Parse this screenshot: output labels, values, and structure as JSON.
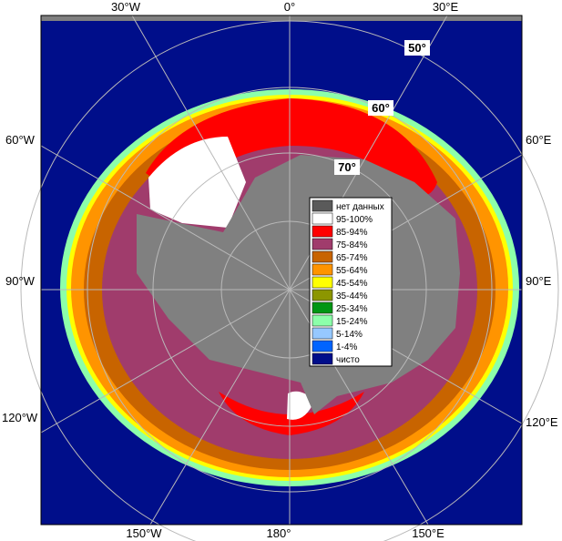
{
  "map": {
    "lon_labels": {
      "top_w30": "30°W",
      "top_0": "0°",
      "top_e30": "30°E",
      "left_60w": "60°W",
      "right_60e": "60°E",
      "left_90w": "90°W",
      "right_90e": "90°E",
      "left_120w": "120°W",
      "right_120e": "120°E",
      "bottom_150w": "150°W",
      "bottom_180": "180°",
      "bottom_150e": "150°E"
    },
    "lat_labels": {
      "lat50": "50°",
      "lat60": "60°",
      "lat70": "70°"
    },
    "colors": {
      "ocean": "#000e8a",
      "land": "#808080",
      "frame_top": "#808080",
      "grid": "#b9b9b9"
    }
  },
  "legend": {
    "items": [
      {
        "label": "нет данных",
        "color": "#5a5a5a"
      },
      {
        "label": "95-100%",
        "color": "#ffffff"
      },
      {
        "label": "85-94%",
        "color": "#ff0000"
      },
      {
        "label": "75-84%",
        "color": "#a03c6c"
      },
      {
        "label": "65-74%",
        "color": "#c86400"
      },
      {
        "label": "55-64%",
        "color": "#ff9400"
      },
      {
        "label": "45-54%",
        "color": "#ffff00"
      },
      {
        "label": "35-44%",
        "color": "#8c9600"
      },
      {
        "label": "25-34%",
        "color": "#009614"
      },
      {
        "label": "15-24%",
        "color": "#8cffaa"
      },
      {
        "label": "5-14%",
        "color": "#96c8ff"
      },
      {
        "label": "1-4%",
        "color": "#0064ff"
      },
      {
        "label": "чисто",
        "color": "#000e8a"
      }
    ]
  }
}
